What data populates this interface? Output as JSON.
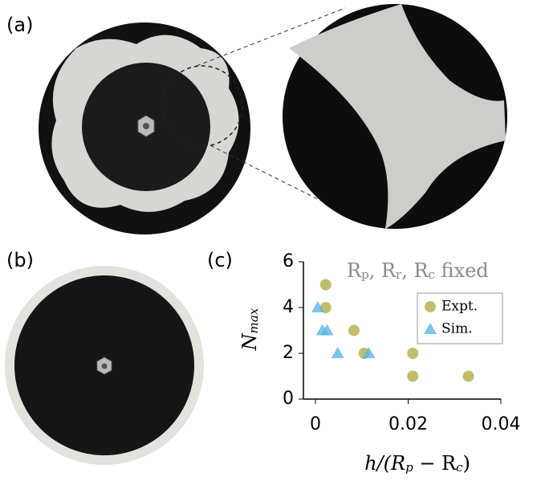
{
  "panels": {
    "a": "(a)",
    "b": "(b)",
    "c": "(c)"
  },
  "chart_data": {
    "type": "scatter",
    "annotation": [
      "R",
      "p",
      ", R",
      "r",
      ", R",
      "c",
      " fixed"
    ],
    "xlabel": [
      "h/(R",
      "p",
      " − R",
      "c",
      ")"
    ],
    "ylabel": [
      "N",
      "max"
    ],
    "xlim": [
      -0.0026,
      0.04
    ],
    "ylim": [
      0,
      6
    ],
    "xticks": [
      0,
      0.02,
      0.04
    ],
    "yticks": [
      0,
      2,
      4,
      6
    ],
    "legend": "upper right",
    "series": [
      {
        "name": "Expt.",
        "color": "#b3ad4a",
        "marker": "circle",
        "x": [
          0.0022,
          0.0022,
          0.0083,
          0.0105,
          0.021,
          0.021,
          0.033
        ],
        "values": [
          5,
          4,
          3,
          2,
          2,
          1,
          1
        ]
      },
      {
        "name": "Sim.",
        "color": "#5ab6e6",
        "marker": "triangle",
        "x": [
          0.0005,
          0.0015,
          0.0025,
          0.0048,
          0.0115
        ],
        "values": [
          4,
          3,
          3,
          2,
          2
        ]
      }
    ]
  }
}
